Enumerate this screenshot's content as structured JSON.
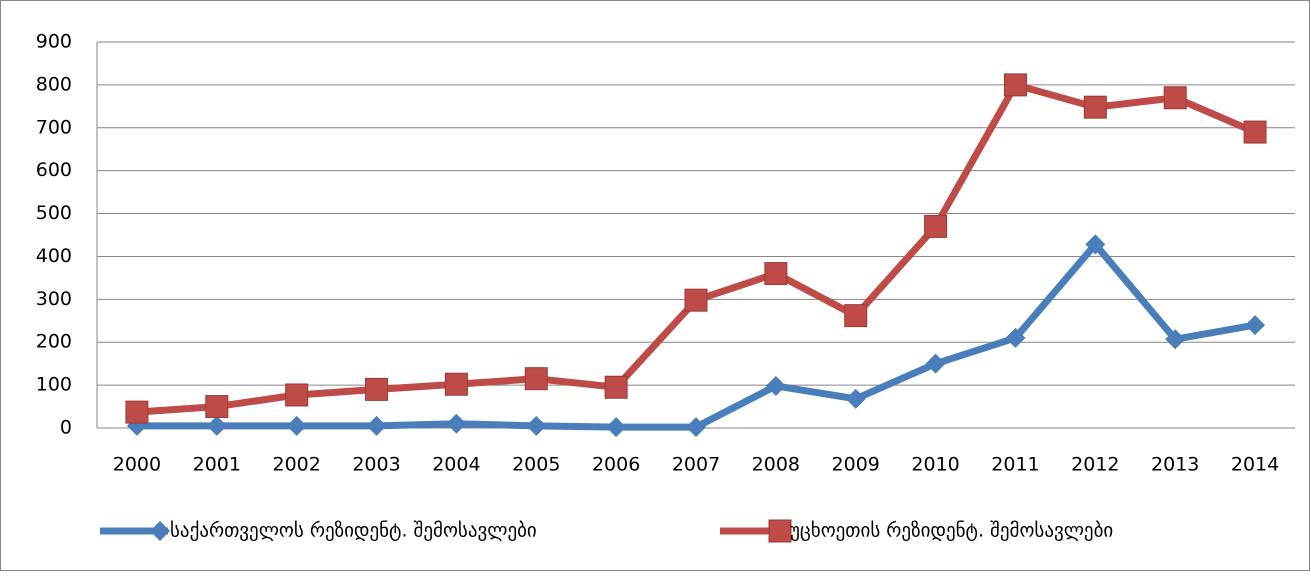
{
  "chart_data": {
    "type": "line",
    "categories": [
      "2000",
      "2001",
      "2002",
      "2003",
      "2004",
      "2005",
      "2006",
      "2007",
      "2008",
      "2009",
      "2010",
      "2011",
      "2012",
      "2013",
      "2014"
    ],
    "series": [
      {
        "name": "საქართველოს რეზიდენტ. შემოსავლები",
        "color": "#4a7ebb",
        "marker": "diamond",
        "values": [
          5,
          5,
          5,
          5,
          10,
          5,
          2,
          2,
          98,
          68,
          150,
          210,
          428,
          207,
          240
        ]
      },
      {
        "name": "უცხოეთის რეზიდენტ. შემოსავლები",
        "color": "#be4b48",
        "marker": "square",
        "values": [
          37,
          50,
          77,
          90,
          102,
          115,
          95,
          298,
          360,
          262,
          470,
          800,
          748,
          770,
          690
        ]
      }
    ],
    "ylim": [
      0,
      900
    ],
    "yticks": [
      0,
      100,
      200,
      300,
      400,
      500,
      600,
      700,
      800,
      900
    ],
    "grid": true,
    "legend": "bottom"
  }
}
